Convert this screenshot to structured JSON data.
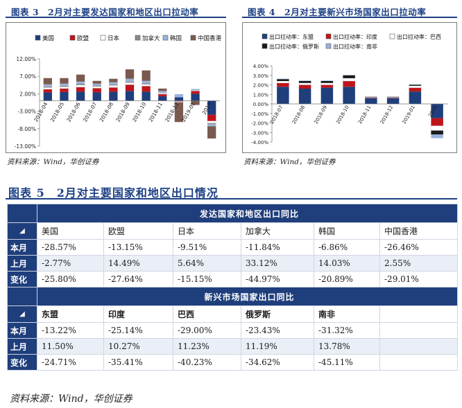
{
  "figure3": {
    "title": "图表 3　2月对主要发达国家和地区出口拉动率",
    "source": "资料来源：Wind，华创证券"
  },
  "figure4": {
    "title": "图表 4　2月对主要新兴市场国家出口拉动率",
    "source": "资料来源：Wind，华创证券"
  },
  "chart_data": [
    {
      "type": "bar",
      "stacked": true,
      "categories": [
        "2018-04",
        "2018-05",
        "2018-06",
        "2018-07",
        "2018-08",
        "2018-09",
        "2018-10",
        "2018-11",
        "2018-12",
        "2019-01",
        "2019"
      ],
      "y_ticks": [
        "12.00%",
        "7.00%",
        "2.00%",
        "-3.00%",
        "-8.00%",
        "-13.00%"
      ],
      "ylim": [
        -13,
        12
      ],
      "legend": "top",
      "colors": {
        "美国": "#1f3e7c",
        "欧盟": "#c0141b",
        "日本": "#ffffff",
        "加拿大": "#8a8a8a",
        "韩国": "#9ab3dc",
        "中国香港": "#7a5a4e"
      },
      "series": [
        {
          "name": "美国",
          "values": [
            2.4,
            2.5,
            2.6,
            2.4,
            2.6,
            2.8,
            2.6,
            1.3,
            1.0,
            2.0,
            -4.0
          ]
        },
        {
          "name": "欧盟",
          "values": [
            0.9,
            1.0,
            1.3,
            1.2,
            1.2,
            1.8,
            1.6,
            0.6,
            -0.2,
            0.8,
            -1.8
          ]
        },
        {
          "name": "日本",
          "values": [
            0.5,
            0.5,
            0.6,
            0.5,
            0.6,
            0.6,
            0.5,
            0.3,
            -0.2,
            0.2,
            -0.6
          ]
        },
        {
          "name": "加拿大",
          "values": [
            0.3,
            0.3,
            0.4,
            0.3,
            0.3,
            0.3,
            0.3,
            0.1,
            -0.1,
            0.1,
            -0.3
          ]
        },
        {
          "name": "韩国",
          "values": [
            0.6,
            0.6,
            0.6,
            0.5,
            0.6,
            0.8,
            0.7,
            0.5,
            0.9,
            0.3,
            -0.6
          ]
        },
        {
          "name": "中国香港",
          "values": [
            1.8,
            1.6,
            2.0,
            0.8,
            1.0,
            2.7,
            3.0,
            0.7,
            -5.6,
            -1.2,
            -3.5
          ]
        }
      ]
    },
    {
      "type": "bar",
      "stacked": true,
      "categories": [
        "2018-07",
        "2018-08",
        "2018-09",
        "2018-10",
        "2018-11",
        "2018-12",
        "2019-01",
        "2019"
      ],
      "y_ticks": [
        "4.00%",
        "3.00%",
        "2.00%",
        "1.00%",
        "0.00%",
        "-1.00%",
        "-2.00%",
        "-3.00%",
        "-4.00%"
      ],
      "ylim": [
        -4,
        4
      ],
      "legend": "top",
      "colors": {
        "出口拉动率：东盟": "#1f3e7c",
        "出口拉动率：印度": "#c0141b",
        "出口拉动率：巴西": "#ffffff",
        "出口拉动率：俄罗斯": "#1a1a1a",
        "出口拉动率：南非": "#9ab3dc"
      },
      "series": [
        {
          "name": "出口拉动率：东盟",
          "values": [
            1.8,
            1.6,
            1.7,
            1.8,
            0.6,
            0.6,
            1.3,
            -1.5
          ]
        },
        {
          "name": "出口拉动率：印度",
          "values": [
            0.4,
            0.4,
            0.3,
            0.6,
            0.05,
            0.05,
            0.4,
            -0.8
          ]
        },
        {
          "name": "出口拉动率：巴西",
          "values": [
            0.2,
            0.2,
            0.2,
            0.3,
            0.05,
            0.05,
            0.2,
            -0.5
          ]
        },
        {
          "name": "出口拉动率：俄罗斯",
          "values": [
            0.2,
            0.2,
            0.2,
            0.3,
            0.05,
            0.05,
            0.1,
            -0.4
          ]
        },
        {
          "name": "出口拉动率：南非",
          "values": [
            0.05,
            0.05,
            0.05,
            0.05,
            0.02,
            0.02,
            0.05,
            -0.4
          ]
        }
      ]
    }
  ],
  "table5": {
    "title": "图表 5　2月对主要国家和地区出口情况",
    "section1_header": "发达国家和地区出口同比",
    "section1_columns": [
      "美国",
      "欧盟",
      "日本",
      "加拿大",
      "韩国",
      "中国香港"
    ],
    "section1_rows": [
      {
        "label": "本月",
        "values": [
          "-28.57%",
          "-13.15%",
          "-9.51%",
          "-11.84%",
          "-6.86%",
          "-26.46%"
        ]
      },
      {
        "label": "上月",
        "values": [
          "-2.77%",
          "14.49%",
          "5.64%",
          "33.12%",
          "14.03%",
          "2.55%"
        ]
      },
      {
        "label": "变化",
        "values": [
          "-25.80%",
          "-27.64%",
          "-15.15%",
          "-44.97%",
          "-20.89%",
          "-29.01%"
        ]
      }
    ],
    "section2_header": "新兴市场国家出口同比",
    "section2_columns": [
      "东盟",
      "印度",
      "巴西",
      "俄罗斯",
      "南非"
    ],
    "section2_rows": [
      {
        "label": "本月",
        "values": [
          "-13.22%",
          "-25.14%",
          "-29.00%",
          "-23.43%",
          "-31.32%"
        ]
      },
      {
        "label": "上月",
        "values": [
          "11.50%",
          "10.27%",
          "11.23%",
          "11.19%",
          "13.78%"
        ]
      },
      {
        "label": "变化",
        "values": [
          "-24.71%",
          "-35.41%",
          "-40.23%",
          "-34.62%",
          "-45.11%"
        ]
      }
    ],
    "source": "资料来源：Wind，华创证券"
  }
}
